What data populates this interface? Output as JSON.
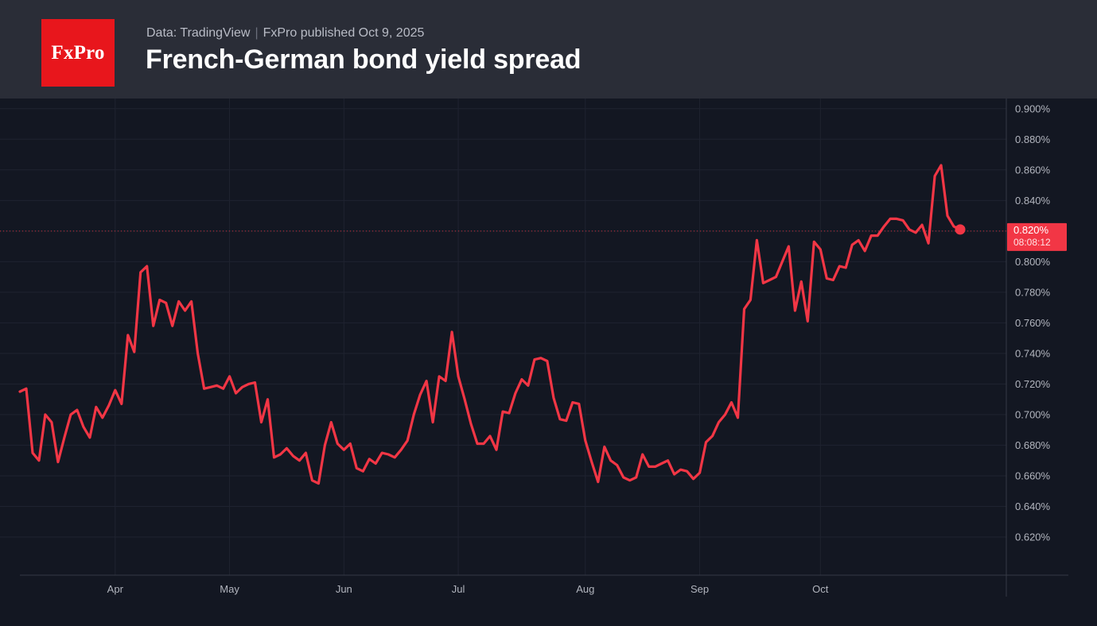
{
  "header": {
    "logo_text": "FxPro",
    "source": "Data: TradingView",
    "separator": "|",
    "published": "FxPro published Oct 9,  2025",
    "title": "French-German bond yield spread"
  },
  "colors": {
    "background": "#131722",
    "header_background": "#2a2d37",
    "line": "#f23645",
    "logo": "#e8161c",
    "grid": "#1f2330",
    "axis_text": "#b2b5be"
  },
  "chart_data": {
    "type": "line",
    "title": "French-German bond yield spread",
    "xlabel": "",
    "ylabel": "",
    "ylim": [
      0.607,
      0.903
    ],
    "y_ticks": [
      0.62,
      0.64,
      0.66,
      0.68,
      0.7,
      0.72,
      0.74,
      0.76,
      0.78,
      0.8,
      0.82,
      0.84,
      0.86,
      0.88,
      0.9
    ],
    "y_tick_labels": [
      "0.620%",
      "0.640%",
      "0.660%",
      "0.680%",
      "0.700%",
      "0.720%",
      "0.740%",
      "0.760%",
      "0.780%",
      "0.800%",
      "0.820%",
      "0.840%",
      "0.860%",
      "0.880%",
      "0.900%"
    ],
    "x_tick_labels": [
      "Apr",
      "May",
      "Jun",
      "Jul",
      "Aug",
      "Sep",
      "Oct"
    ],
    "x_tick_index": [
      15,
      33,
      51,
      69,
      89,
      107,
      126
    ],
    "grid": true,
    "current_value_label": "0.820%",
    "countdown_label": "08:08:12",
    "current_value": 0.82,
    "series": [
      {
        "values": [
          0.715,
          0.717,
          0.675,
          0.67,
          0.7,
          0.695,
          0.669,
          0.685,
          0.7,
          0.703,
          0.692,
          0.685,
          0.705,
          0.698,
          0.706,
          0.716,
          0.707,
          0.752,
          0.741,
          0.793,
          0.797,
          0.758,
          0.775,
          0.773,
          0.758,
          0.774,
          0.768,
          0.774,
          0.74,
          0.717,
          0.718,
          0.719,
          0.717,
          0.725,
          0.714,
          0.718,
          0.72,
          0.721,
          0.695,
          0.71,
          0.672,
          0.674,
          0.678,
          0.673,
          0.67,
          0.675,
          0.657,
          0.655,
          0.68,
          0.695,
          0.681,
          0.677,
          0.681,
          0.665,
          0.663,
          0.671,
          0.668,
          0.675,
          0.674,
          0.672,
          0.677,
          0.683,
          0.7,
          0.713,
          0.722,
          0.695,
          0.725,
          0.722,
          0.754,
          0.725,
          0.71,
          0.694,
          0.681,
          0.681,
          0.686,
          0.677,
          0.702,
          0.701,
          0.714,
          0.723,
          0.719,
          0.736,
          0.737,
          0.735,
          0.711,
          0.697,
          0.696,
          0.708,
          0.707,
          0.683,
          0.669,
          0.656,
          0.679,
          0.67,
          0.667,
          0.659,
          0.657,
          0.659,
          0.674,
          0.666,
          0.666,
          0.668,
          0.67,
          0.661,
          0.664,
          0.663,
          0.658,
          0.662,
          0.682,
          0.686,
          0.695,
          0.7,
          0.708,
          0.698,
          0.769,
          0.775,
          0.814,
          0.786,
          0.788,
          0.79,
          0.8,
          0.81,
          0.768,
          0.787,
          0.761,
          0.813,
          0.808,
          0.789,
          0.788,
          0.797,
          0.796,
          0.811,
          0.814,
          0.807,
          0.817,
          0.817,
          0.823,
          0.828,
          0.828,
          0.827,
          0.821,
          0.819,
          0.824,
          0.812,
          0.856,
          0.863,
          0.83,
          0.823,
          0.821
        ]
      }
    ]
  }
}
